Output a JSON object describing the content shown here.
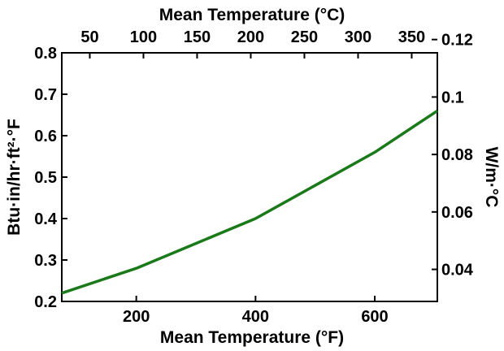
{
  "chart_data": {
    "type": "line",
    "x_bottom": {
      "label": "Mean Temperature (°F)",
      "ticks": [
        200,
        400,
        600
      ],
      "range": [
        75,
        705
      ]
    },
    "x_top": {
      "label": "Mean Temperature (°C)",
      "ticks": [
        50,
        100,
        150,
        200,
        250,
        300,
        350
      ]
    },
    "y_left": {
      "label": "Btu·in/hr·ft²·°F",
      "ticks": [
        0.2,
        0.3,
        0.4,
        0.5,
        0.6,
        0.7,
        0.8
      ],
      "range": [
        0.2,
        0.8
      ]
    },
    "y_right": {
      "label": "W/m·°C",
      "ticks": [
        0.04,
        0.06,
        0.08,
        0.1,
        0.12
      ],
      "tick_labels": [
        "0.04",
        "0.06",
        "0.08",
        "0.1",
        "0.12"
      ]
    },
    "series": [
      {
        "color": "#1a7a1a",
        "x": [
          75,
          200,
          300,
          400,
          500,
          600,
          705
        ],
        "y": [
          0.22,
          0.28,
          0.34,
          0.4,
          0.48,
          0.56,
          0.66
        ]
      }
    ],
    "grid": false,
    "legend": "none"
  }
}
